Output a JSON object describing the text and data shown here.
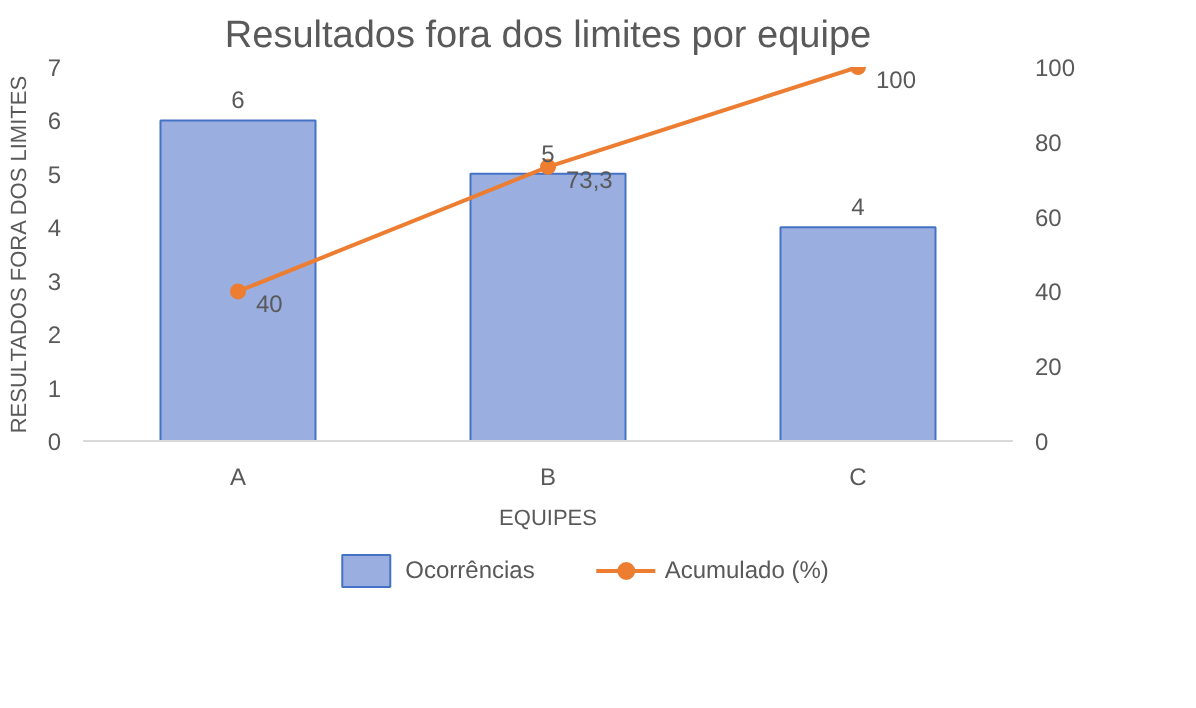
{
  "chart_data": {
    "type": "bar",
    "title": "Resultados fora dos limites por equipe",
    "xlabel": "EQUIPES",
    "ylabel": "RESULTADOS FORA DOS LIMITES",
    "categories": [
      "A",
      "B",
      "C"
    ],
    "series": [
      {
        "name": "Ocorrências",
        "color": "#9aaee0",
        "values": [
          6,
          5,
          4
        ],
        "value_labels": [
          "6",
          "5",
          "4"
        ]
      },
      {
        "name": "Acumulado (%)",
        "type": "line",
        "axis": "y2",
        "marker": "circle",
        "color": "#ed7d31",
        "values": [
          40,
          73.3,
          100
        ],
        "value_labels": [
          "40",
          "73,3",
          "100"
        ]
      }
    ],
    "ylim": [
      0,
      7
    ],
    "yticks": [
      0,
      1,
      2,
      3,
      4,
      5,
      6,
      7
    ],
    "y2lim": [
      0,
      100
    ],
    "y2ticks": [
      0,
      20,
      40,
      60,
      80,
      100
    ],
    "legend": "bottom",
    "grid": false
  }
}
